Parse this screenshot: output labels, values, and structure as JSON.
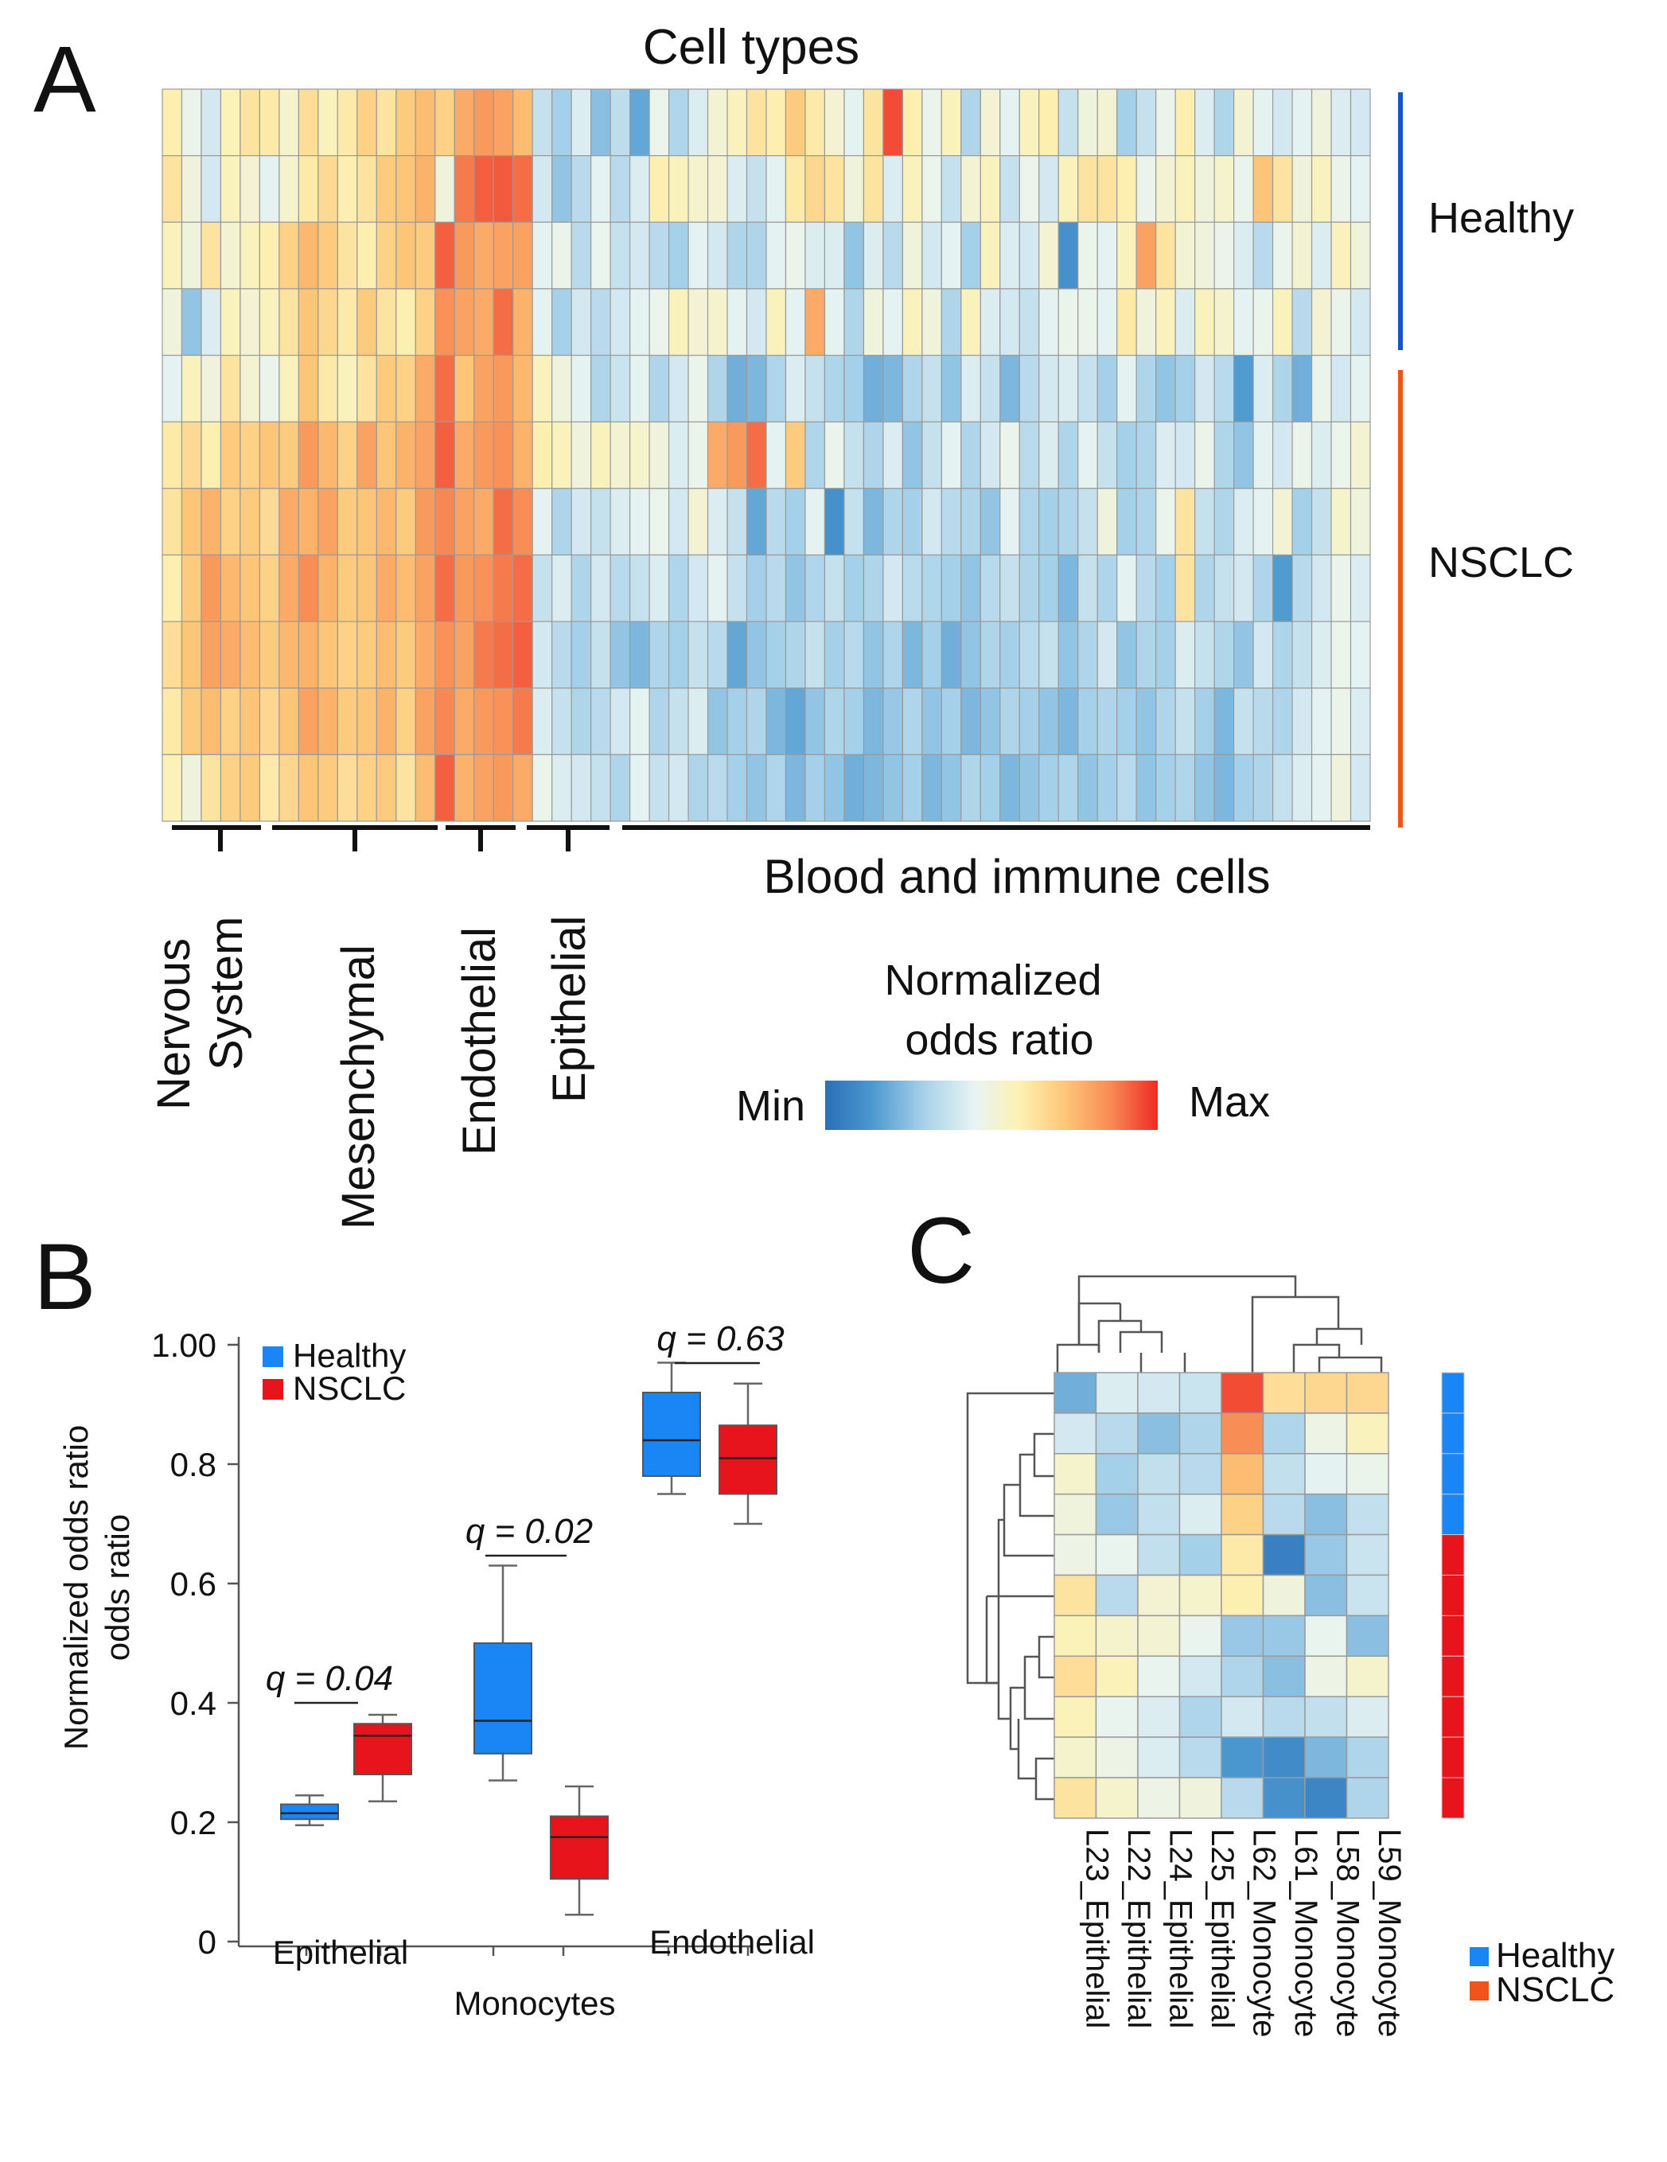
{
  "colors": {
    "healthy": "#1e8ef0",
    "nsclc": "#e8102a",
    "healthy_bar": "#1555c8",
    "nsclc_bar": "#f0541c",
    "box_healthy": "#1a86f5",
    "box_nsclc": "#e8141c",
    "colormap": [
      "#2a6fb8",
      "#4b98cf",
      "#a9d2ea",
      "#e8f4f3",
      "#fdf2b4",
      "#fdc778",
      "#f88a54",
      "#ee2a24"
    ]
  },
  "panel_a": {
    "letter": "A",
    "title": "Cell types",
    "row_group_labels": {
      "healthy": "Healthy",
      "nsclc": "NSCLC"
    },
    "col_group_labels": [
      {
        "label": "Nervous System",
        "lines": [
          "Nervous",
          "System"
        ]
      },
      {
        "label": "Mesenchymal"
      },
      {
        "label": "Endothelial"
      },
      {
        "label": "Epithelial"
      },
      {
        "label": "Blood and immune cells"
      }
    ],
    "legend": {
      "title_line1": "Normalized",
      "title_line2": "odds ratio",
      "min_label": "Min",
      "max_label": "Max"
    }
  },
  "panel_b": {
    "letter": "B",
    "legend": {
      "healthy": "Healthy",
      "nsclc": "NSCLC"
    },
    "annotations": [
      "q = 0.04",
      "q = 0.02",
      "q = 0.63"
    ],
    "x_labels": [
      "Epithelial",
      "Monocytes",
      "Endothelial"
    ]
  },
  "panel_c": {
    "letter": "C",
    "legend": {
      "healthy": "Healthy",
      "nsclc": "NSCLC"
    }
  },
  "chart_data": [
    {
      "type": "heatmap",
      "panel": "A",
      "title": "Cell types",
      "n_rows": 11,
      "n_cols": 62,
      "row_groups": [
        {
          "name": "Healthy",
          "rows": 4
        },
        {
          "name": "NSCLC",
          "rows": 7
        }
      ],
      "col_groups": [
        {
          "name": "Nervous System",
          "cols": 5
        },
        {
          "name": "Mesenchymal",
          "cols": 9
        },
        {
          "name": "Endothelial",
          "cols": 5
        },
        {
          "name": "Epithelial",
          "cols": 5
        },
        {
          "name": "Blood and immune cells",
          "cols": 38
        }
      ],
      "value_scale": "Normalized odds ratio (Min to Max, 0-1)",
      "values": [
        [
          0.58,
          0.45,
          0.38,
          0.56,
          0.62,
          0.6,
          0.52,
          0.64,
          0.55,
          0.6,
          0.68,
          0.62,
          0.7,
          0.74,
          0.68,
          0.78,
          0.82,
          0.8,
          0.74,
          0.35,
          0.28,
          0.4,
          0.24,
          0.33,
          0.18,
          0.45,
          0.3,
          0.4,
          0.5,
          0.55,
          0.62,
          0.58,
          0.7,
          0.6,
          0.5,
          0.42,
          0.62,
          0.95,
          0.58,
          0.45,
          0.55,
          0.3,
          0.5,
          0.42,
          0.55,
          0.58,
          0.35,
          0.48,
          0.5,
          0.28,
          0.35,
          0.45,
          0.58,
          0.4,
          0.3,
          0.5,
          0.42,
          0.38,
          0.42,
          0.48,
          0.4,
          0.38
        ],
        [
          0.62,
          0.48,
          0.38,
          0.55,
          0.5,
          0.42,
          0.52,
          0.6,
          0.65,
          0.58,
          0.62,
          0.7,
          0.72,
          0.76,
          0.48,
          0.88,
          0.92,
          0.93,
          0.9,
          0.38,
          0.25,
          0.32,
          0.42,
          0.32,
          0.4,
          0.58,
          0.55,
          0.52,
          0.5,
          0.4,
          0.35,
          0.42,
          0.6,
          0.66,
          0.62,
          0.48,
          0.62,
          0.4,
          0.55,
          0.45,
          0.35,
          0.5,
          0.55,
          0.35,
          0.45,
          0.38,
          0.55,
          0.62,
          0.62,
          0.58,
          0.45,
          0.5,
          0.55,
          0.48,
          0.52,
          0.45,
          0.72,
          0.62,
          0.48,
          0.55,
          0.45,
          0.42
        ],
        [
          0.55,
          0.48,
          0.62,
          0.5,
          0.55,
          0.58,
          0.68,
          0.75,
          0.7,
          0.62,
          0.58,
          0.68,
          0.72,
          0.7,
          0.92,
          0.82,
          0.78,
          0.8,
          0.8,
          0.42,
          0.45,
          0.32,
          0.44,
          0.35,
          0.38,
          0.32,
          0.28,
          0.42,
          0.38,
          0.3,
          0.3,
          0.42,
          0.45,
          0.4,
          0.4,
          0.25,
          0.4,
          0.32,
          0.48,
          0.38,
          0.42,
          0.28,
          0.55,
          0.4,
          0.38,
          0.5,
          0.12,
          0.45,
          0.42,
          0.55,
          0.8,
          0.62,
          0.5,
          0.48,
          0.45,
          0.4,
          0.32,
          0.45,
          0.5,
          0.4,
          0.55,
          0.48
        ],
        [
          0.48,
          0.25,
          0.4,
          0.55,
          0.5,
          0.55,
          0.62,
          0.72,
          0.66,
          0.6,
          0.7,
          0.62,
          0.58,
          0.68,
          0.84,
          0.8,
          0.78,
          0.9,
          0.76,
          0.42,
          0.28,
          0.38,
          0.32,
          0.38,
          0.42,
          0.45,
          0.55,
          0.5,
          0.52,
          0.42,
          0.38,
          0.55,
          0.42,
          0.78,
          0.42,
          0.3,
          0.48,
          0.42,
          0.55,
          0.48,
          0.3,
          0.55,
          0.4,
          0.38,
          0.35,
          0.42,
          0.45,
          0.45,
          0.42,
          0.6,
          0.48,
          0.55,
          0.4,
          0.55,
          0.52,
          0.42,
          0.45,
          0.55,
          0.32,
          0.5,
          0.45,
          0.38
        ],
        [
          0.42,
          0.55,
          0.48,
          0.62,
          0.5,
          0.45,
          0.55,
          0.72,
          0.6,
          0.55,
          0.62,
          0.7,
          0.68,
          0.78,
          0.9,
          0.72,
          0.8,
          0.82,
          0.75,
          0.55,
          0.48,
          0.42,
          0.3,
          0.36,
          0.42,
          0.3,
          0.38,
          0.45,
          0.3,
          0.2,
          0.22,
          0.3,
          0.4,
          0.35,
          0.3,
          0.28,
          0.2,
          0.22,
          0.3,
          0.35,
          0.25,
          0.4,
          0.35,
          0.22,
          0.32,
          0.38,
          0.4,
          0.35,
          0.28,
          0.42,
          0.3,
          0.25,
          0.28,
          0.38,
          0.32,
          0.15,
          0.4,
          0.3,
          0.2,
          0.45,
          0.38,
          0.42
        ],
        [
          0.6,
          0.65,
          0.58,
          0.7,
          0.68,
          0.72,
          0.7,
          0.82,
          0.75,
          0.68,
          0.8,
          0.72,
          0.76,
          0.8,
          0.92,
          0.78,
          0.82,
          0.84,
          0.76,
          0.58,
          0.55,
          0.48,
          0.55,
          0.5,
          0.52,
          0.48,
          0.4,
          0.45,
          0.78,
          0.82,
          0.9,
          0.42,
          0.7,
          0.3,
          0.45,
          0.35,
          0.3,
          0.4,
          0.25,
          0.35,
          0.42,
          0.3,
          0.38,
          0.45,
          0.32,
          0.4,
          0.3,
          0.42,
          0.35,
          0.28,
          0.3,
          0.4,
          0.38,
          0.45,
          0.3,
          0.25,
          0.42,
          0.38,
          0.45,
          0.4,
          0.45,
          0.5
        ],
        [
          0.62,
          0.72,
          0.76,
          0.68,
          0.7,
          0.65,
          0.78,
          0.76,
          0.8,
          0.7,
          0.72,
          0.75,
          0.7,
          0.82,
          0.86,
          0.8,
          0.78,
          0.9,
          0.85,
          0.42,
          0.3,
          0.38,
          0.35,
          0.4,
          0.42,
          0.45,
          0.38,
          0.5,
          0.4,
          0.35,
          0.18,
          0.32,
          0.28,
          0.42,
          0.12,
          0.35,
          0.22,
          0.3,
          0.28,
          0.38,
          0.32,
          0.3,
          0.25,
          0.42,
          0.3,
          0.28,
          0.3,
          0.35,
          0.48,
          0.28,
          0.3,
          0.45,
          0.62,
          0.35,
          0.3,
          0.4,
          0.42,
          0.5,
          0.28,
          0.35,
          0.52,
          0.48
        ],
        [
          0.58,
          0.7,
          0.82,
          0.75,
          0.72,
          0.68,
          0.78,
          0.85,
          0.76,
          0.7,
          0.72,
          0.78,
          0.74,
          0.8,
          0.9,
          0.82,
          0.84,
          0.88,
          0.9,
          0.35,
          0.4,
          0.3,
          0.38,
          0.32,
          0.35,
          0.4,
          0.3,
          0.38,
          0.42,
          0.35,
          0.28,
          0.32,
          0.25,
          0.3,
          0.35,
          0.28,
          0.3,
          0.38,
          0.32,
          0.3,
          0.28,
          0.25,
          0.32,
          0.35,
          0.3,
          0.28,
          0.22,
          0.35,
          0.3,
          0.42,
          0.32,
          0.28,
          0.62,
          0.3,
          0.35,
          0.38,
          0.3,
          0.15,
          0.32,
          0.38,
          0.45,
          0.4
        ],
        [
          0.64,
          0.72,
          0.8,
          0.78,
          0.74,
          0.7,
          0.75,
          0.76,
          0.72,
          0.68,
          0.7,
          0.74,
          0.7,
          0.78,
          0.84,
          0.8,
          0.88,
          0.9,
          0.92,
          0.38,
          0.32,
          0.28,
          0.35,
          0.25,
          0.22,
          0.3,
          0.28,
          0.35,
          0.32,
          0.18,
          0.25,
          0.28,
          0.3,
          0.35,
          0.28,
          0.32,
          0.25,
          0.3,
          0.22,
          0.28,
          0.2,
          0.25,
          0.3,
          0.28,
          0.32,
          0.35,
          0.25,
          0.3,
          0.38,
          0.25,
          0.3,
          0.28,
          0.4,
          0.35,
          0.3,
          0.25,
          0.38,
          0.3,
          0.35,
          0.4,
          0.45,
          0.42
        ],
        [
          0.6,
          0.7,
          0.74,
          0.68,
          0.72,
          0.66,
          0.72,
          0.8,
          0.76,
          0.7,
          0.72,
          0.76,
          0.68,
          0.8,
          0.86,
          0.78,
          0.82,
          0.84,
          0.88,
          0.4,
          0.35,
          0.3,
          0.32,
          0.38,
          0.42,
          0.3,
          0.35,
          0.4,
          0.25,
          0.28,
          0.3,
          0.22,
          0.18,
          0.25,
          0.3,
          0.28,
          0.22,
          0.26,
          0.3,
          0.25,
          0.28,
          0.22,
          0.25,
          0.3,
          0.28,
          0.25,
          0.22,
          0.28,
          0.3,
          0.28,
          0.25,
          0.3,
          0.35,
          0.28,
          0.22,
          0.35,
          0.32,
          0.3,
          0.38,
          0.42,
          0.45,
          0.4
        ],
        [
          0.56,
          0.48,
          0.62,
          0.68,
          0.7,
          0.6,
          0.66,
          0.72,
          0.7,
          0.64,
          0.68,
          0.7,
          0.62,
          0.74,
          0.92,
          0.76,
          0.8,
          0.82,
          0.78,
          0.45,
          0.4,
          0.38,
          0.35,
          0.3,
          0.42,
          0.35,
          0.38,
          0.3,
          0.32,
          0.28,
          0.25,
          0.3,
          0.22,
          0.28,
          0.25,
          0.2,
          0.22,
          0.25,
          0.28,
          0.22,
          0.25,
          0.3,
          0.28,
          0.22,
          0.25,
          0.28,
          0.3,
          0.25,
          0.28,
          0.32,
          0.25,
          0.28,
          0.3,
          0.25,
          0.22,
          0.28,
          0.3,
          0.35,
          0.4,
          0.42,
          0.48,
          0.38
        ]
      ]
    },
    {
      "type": "box",
      "panel": "B",
      "ylabel": "Normalized odds ratio",
      "ylim": [
        0,
        1.0
      ],
      "yticks": [
        0,
        0.2,
        0.4,
        0.6,
        0.8,
        1.0
      ],
      "ytick_labels": [
        "0",
        "0.2",
        "0.4",
        "0.6",
        "0.8",
        "1.00"
      ],
      "categories": [
        "Epithelial",
        "Monocytes",
        "Endothelial"
      ],
      "series": [
        {
          "name": "Healthy",
          "boxes": [
            {
              "min": 0.195,
              "q1": 0.205,
              "median": 0.215,
              "q3": 0.23,
              "max": 0.245
            },
            {
              "min": 0.27,
              "q1": 0.315,
              "median": 0.37,
              "q3": 0.5,
              "max": 0.63
            },
            {
              "min": 0.75,
              "q1": 0.78,
              "median": 0.84,
              "q3": 0.92,
              "max": 0.97
            }
          ]
        },
        {
          "name": "NSCLC",
          "boxes": [
            {
              "min": 0.235,
              "q1": 0.28,
              "median": 0.345,
              "q3": 0.365,
              "max": 0.38
            },
            {
              "min": 0.045,
              "q1": 0.105,
              "median": 0.175,
              "q3": 0.21,
              "max": 0.26
            },
            {
              "min": 0.7,
              "q1": 0.75,
              "median": 0.81,
              "q3": 0.865,
              "max": 0.935
            }
          ]
        }
      ],
      "annotations": [
        "q = 0.04",
        "q = 0.02",
        "q = 0.63"
      ]
    },
    {
      "type": "heatmap",
      "panel": "C",
      "columns": [
        "L23_Epithelial",
        "L22_Epithelial",
        "L24_Epithelial",
        "L25_Epithelial",
        "L62_Monocyte",
        "L61_Monocyte",
        "L58_Monocyte",
        "L59_Monocyte"
      ],
      "row_groups": [
        "Healthy",
        "Healthy",
        "Healthy",
        "Healthy",
        "NSCLC",
        "NSCLC",
        "NSCLC",
        "NSCLC",
        "NSCLC",
        "NSCLC",
        "NSCLC"
      ],
      "values": [
        [
          0.2,
          0.4,
          0.38,
          0.36,
          0.95,
          0.64,
          0.66,
          0.66
        ],
        [
          0.38,
          0.32,
          0.24,
          0.3,
          0.85,
          0.3,
          0.46,
          0.55
        ],
        [
          0.52,
          0.28,
          0.34,
          0.32,
          0.74,
          0.34,
          0.42,
          0.45
        ],
        [
          0.48,
          0.26,
          0.34,
          0.4,
          0.68,
          0.32,
          0.24,
          0.34
        ],
        [
          0.46,
          0.44,
          0.34,
          0.28,
          0.6,
          0.06,
          0.26,
          0.36
        ],
        [
          0.62,
          0.32,
          0.5,
          0.52,
          0.58,
          0.48,
          0.24,
          0.36
        ],
        [
          0.56,
          0.52,
          0.5,
          0.44,
          0.26,
          0.26,
          0.44,
          0.24
        ],
        [
          0.64,
          0.56,
          0.44,
          0.38,
          0.3,
          0.24,
          0.46,
          0.52
        ],
        [
          0.56,
          0.44,
          0.4,
          0.3,
          0.38,
          0.32,
          0.34,
          0.4
        ],
        [
          0.52,
          0.46,
          0.4,
          0.32,
          0.14,
          0.1,
          0.22,
          0.3
        ],
        [
          0.62,
          0.52,
          0.46,
          0.48,
          0.32,
          0.12,
          0.08,
          0.3
        ]
      ]
    }
  ]
}
